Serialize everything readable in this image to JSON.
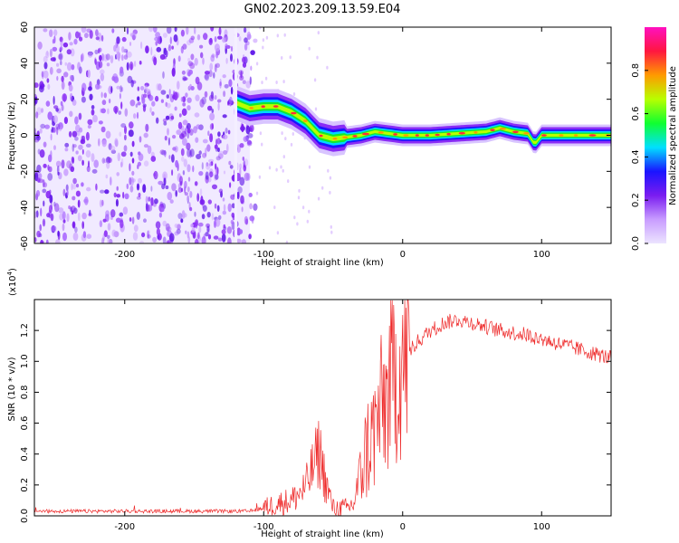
{
  "title": "GN02.2023.209.13.59.E04",
  "colors": {
    "snr_line": "#ee2a2a",
    "spectrogram_dots": "#7a1cf0",
    "colorbar": [
      "#ece4ff",
      "#c89cff",
      "#7a1cf0",
      "#1a14ff",
      "#00e0ff",
      "#10ff30",
      "#b8ff00",
      "#ff9a00",
      "#ff1640",
      "#ff10c0"
    ]
  },
  "chart_data": [
    {
      "type": "heatmap",
      "name": "spectrogram",
      "xlabel": "Height of straight line (km)",
      "ylabel": "Frequency (Hz)",
      "xlim": [
        -265,
        150
      ],
      "ylim": [
        -60,
        60
      ],
      "x_ticks": [
        -200,
        -100,
        0,
        100
      ],
      "y_ticks": [
        -60,
        -40,
        -20,
        0,
        20,
        40,
        60
      ],
      "colorbar": {
        "label": "Normalized spectral amplitude",
        "range": [
          0,
          1
        ],
        "ticks": [
          0.0,
          0.2,
          0.4,
          0.6,
          0.8
        ]
      },
      "ridge": {
        "x": [
          -120,
          -110,
          -100,
          -90,
          -80,
          -70,
          -60,
          -50,
          -40,
          -30,
          -20,
          -10,
          0,
          20,
          40,
          60,
          70,
          80,
          90,
          95,
          100,
          120,
          150
        ],
        "y": [
          18,
          15,
          16,
          16,
          13,
          8,
          0,
          -2,
          -1,
          0,
          2,
          1,
          0,
          0,
          1,
          2,
          4,
          2,
          1,
          -5,
          0,
          0,
          0
        ]
      },
      "noise_region": [
        -265,
        -110
      ]
    },
    {
      "type": "line",
      "name": "snr",
      "xlabel": "Height of straight line (km)",
      "ylabel": "SNR (10 * v/v)",
      "y_multiplier": "(x10",
      "y_multiplier_exp": "4",
      "multiplier_close": ")",
      "xlim": [
        -265,
        150
      ],
      "ylim": [
        0,
        1.4
      ],
      "x_ticks": [
        -200,
        -100,
        0,
        100
      ],
      "y_ticks": [
        "0.0",
        "0.2",
        "0.4",
        "0.6",
        "0.8",
        "1.0",
        "1.2"
      ],
      "trend": {
        "x": [
          -265,
          -150,
          -110,
          -100,
          -90,
          -80,
          -70,
          -65,
          -60,
          -55,
          -50,
          -45,
          -40,
          -35,
          -30,
          -25,
          -20,
          -15,
          -10,
          -5,
          0,
          10,
          20,
          30,
          40,
          50,
          70,
          90,
          110,
          130,
          150
        ],
        "y": [
          0.03,
          0.03,
          0.03,
          0.05,
          0.08,
          0.1,
          0.18,
          0.3,
          0.42,
          0.2,
          0.05,
          0.05,
          0.05,
          0.08,
          0.3,
          0.45,
          0.55,
          0.7,
          0.8,
          0.95,
          1.0,
          1.12,
          1.2,
          1.25,
          1.27,
          1.25,
          1.2,
          1.17,
          1.12,
          1.07,
          1.02
        ]
      }
    }
  ]
}
